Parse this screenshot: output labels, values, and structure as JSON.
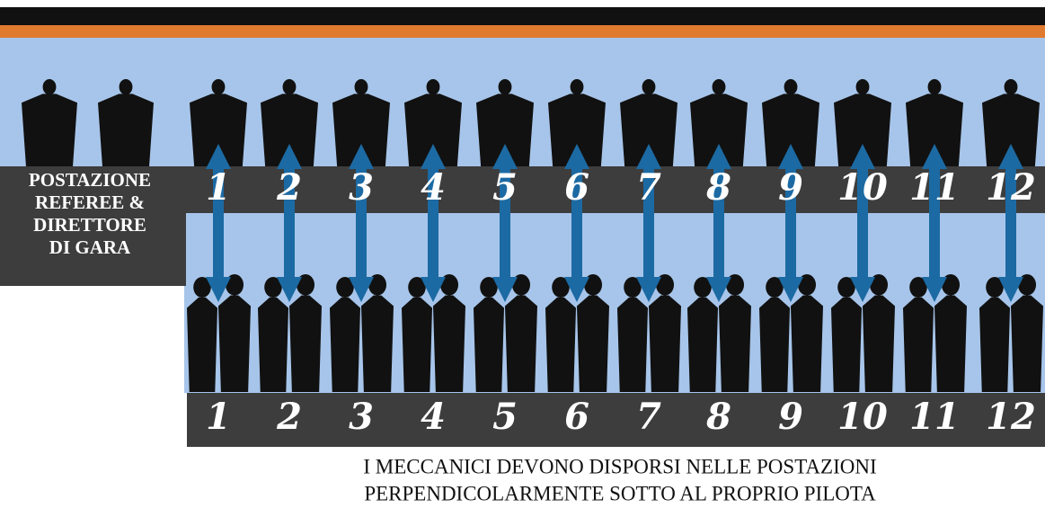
{
  "referee_label": [
    "POSTAZIONE",
    "REFEREE &",
    "DIRETTORE",
    "DI GARA"
  ],
  "pilot_numbers": [
    1,
    2,
    3,
    4,
    5,
    6,
    7,
    8,
    9,
    10,
    11,
    12
  ],
  "mechanic_numbers": [
    1,
    2,
    3,
    4,
    5,
    6,
    7,
    8,
    9,
    10,
    11,
    12
  ],
  "caption": [
    "I MECCANICI DEVONO DISPORSI NELLE POSTAZIONI",
    "PERPENDICOLARMENTE SOTTO AL PROPRIO PILOTA"
  ]
}
